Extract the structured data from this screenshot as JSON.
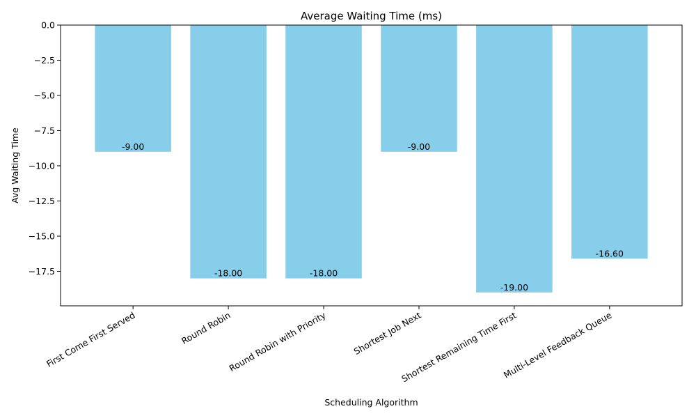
{
  "chart_data": {
    "type": "bar",
    "title": "Average Waiting Time (ms)",
    "xlabel": "Scheduling Algorithm",
    "ylabel": "Avg Waiting Time",
    "categories": [
      "First Come First Served",
      "Round Robin",
      "Round Robin with Priority",
      "Shortest Job Next",
      "Shortest Remaining Time First",
      "Multi-Level Feedback Queue"
    ],
    "values": [
      -9.0,
      -18.0,
      -18.0,
      -9.0,
      -19.0,
      -16.6
    ],
    "data_labels": [
      "-9.00",
      "-18.00",
      "-18.00",
      "-9.00",
      "-19.00",
      "-16.60"
    ],
    "ylim": [
      -19.95,
      0.0
    ],
    "yticks": [
      0.0,
      -2.5,
      -5.0,
      -7.5,
      -10.0,
      -12.5,
      -15.0,
      -17.5
    ],
    "ytick_labels": [
      "0.0",
      "−2.5",
      "−5.0",
      "−7.5",
      "−10.0",
      "−12.5",
      "−15.0",
      "−17.5"
    ],
    "bar_color": "#87ceeb",
    "grid": false,
    "legend": "none"
  }
}
